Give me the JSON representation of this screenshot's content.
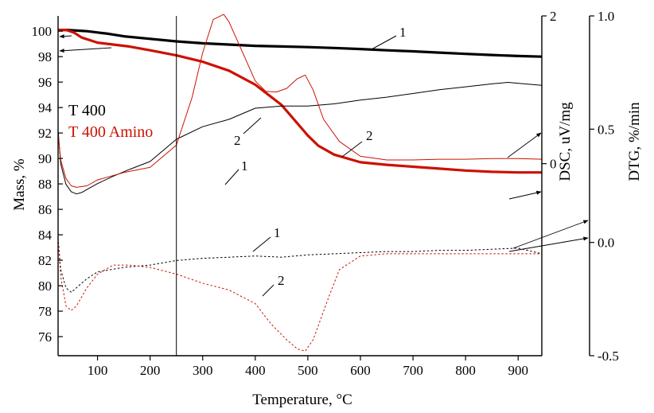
{
  "chart_data": {
    "type": "line",
    "title": "",
    "xlabel": "Temperature, °C",
    "ylabel": "Mass, %",
    "ylabel_dsc": "DSC, uV/mg",
    "ylabel_dtg": "DTG, %/min",
    "xlim": [
      25,
      945
    ],
    "ylim": [
      74.5,
      101.2
    ],
    "dsc_lim": [
      -2.6,
      2.0
    ],
    "dtg_lim": [
      -0.5,
      1.0
    ],
    "x_ticks": [
      100,
      200,
      300,
      400,
      500,
      600,
      700,
      800,
      900
    ],
    "y_ticks": [
      76,
      78,
      80,
      82,
      84,
      86,
      88,
      90,
      92,
      94,
      96,
      98,
      100
    ],
    "dsc_ticks": [
      0,
      2
    ],
    "dtg_ticks": [
      -0.5,
      0.0,
      0.5,
      1.0
    ],
    "dtg_tick_labels": [
      "-0.5",
      "0.0",
      "0.5",
      "1.0"
    ],
    "vertical_marker_x": 250,
    "legend": [
      {
        "label": "T 400",
        "color": "#000000"
      },
      {
        "label": "T 400 Amino",
        "color": "#cc1100"
      }
    ],
    "curve_labels": {
      "one": "1",
      "two": "2"
    },
    "series": [
      {
        "name": "T 400 mass (TG)",
        "axis": "mass",
        "color": "#000000",
        "style": "thick",
        "x": [
          25,
          40,
          60,
          80,
          100,
          120,
          150,
          200,
          250,
          300,
          350,
          400,
          450,
          500,
          550,
          600,
          650,
          700,
          750,
          800,
          850,
          900,
          945
        ],
        "values": [
          100.1,
          100.1,
          100.05,
          100.0,
          99.9,
          99.8,
          99.6,
          99.4,
          99.2,
          99.05,
          98.95,
          98.85,
          98.8,
          98.75,
          98.68,
          98.6,
          98.5,
          98.42,
          98.32,
          98.22,
          98.13,
          98.05,
          98.0
        ]
      },
      {
        "name": "T 400 Amino mass (TG)",
        "axis": "mass",
        "color": "#cc1100",
        "style": "thick",
        "x": [
          25,
          40,
          55,
          70,
          85,
          100,
          130,
          160,
          200,
          250,
          300,
          350,
          400,
          450,
          500,
          520,
          550,
          600,
          650,
          700,
          750,
          800,
          850,
          900,
          945
        ],
        "values": [
          100.1,
          100.1,
          99.9,
          99.5,
          99.3,
          99.1,
          98.95,
          98.8,
          98.5,
          98.1,
          97.6,
          96.9,
          95.8,
          94.2,
          91.8,
          91.0,
          90.3,
          89.7,
          89.5,
          89.35,
          89.2,
          89.05,
          88.95,
          88.9,
          88.9
        ]
      },
      {
        "name": "T 400 DSC",
        "axis": "dsc",
        "color": "#000000",
        "style": "thin",
        "x": [
          25,
          30,
          40,
          50,
          60,
          70,
          80,
          100,
          130,
          160,
          200,
          250,
          300,
          350,
          400,
          450,
          500,
          550,
          600,
          650,
          700,
          750,
          800,
          850,
          880,
          945
        ],
        "values": [
          0.45,
          0.0,
          -0.28,
          -0.38,
          -0.41,
          -0.39,
          -0.35,
          -0.27,
          -0.17,
          -0.08,
          0.03,
          0.33,
          0.5,
          0.6,
          0.75,
          0.78,
          0.78,
          0.81,
          0.86,
          0.9,
          0.95,
          1.0,
          1.04,
          1.08,
          1.1,
          1.06
        ]
      },
      {
        "name": "T 400 Amino DSC",
        "axis": "dsc",
        "color": "#cc1100",
        "style": "thin",
        "x": [
          25,
          30,
          40,
          50,
          60,
          80,
          100,
          150,
          200,
          250,
          280,
          300,
          320,
          340,
          350,
          370,
          400,
          420,
          440,
          460,
          480,
          495,
          510,
          530,
          560,
          600,
          650,
          680,
          700,
          750,
          800,
          850,
          900,
          945
        ],
        "values": [
          0.4,
          0.05,
          -0.2,
          -0.3,
          -0.32,
          -0.3,
          -0.22,
          -0.12,
          -0.05,
          0.25,
          0.9,
          1.5,
          1.95,
          2.02,
          1.92,
          1.6,
          1.12,
          0.98,
          0.97,
          1.02,
          1.15,
          1.2,
          1.0,
          0.6,
          0.3,
          0.1,
          0.05,
          0.05,
          0.05,
          0.06,
          0.06,
          0.07,
          0.07,
          0.06
        ]
      },
      {
        "name": "T 400 DTG",
        "axis": "dtg",
        "color": "#000000",
        "style": "dotted",
        "x": [
          25,
          30,
          40,
          50,
          60,
          80,
          100,
          150,
          200,
          250,
          300,
          350,
          400,
          450,
          500,
          550,
          600,
          650,
          700,
          750,
          800,
          850,
          900,
          945
        ],
        "values": [
          0.02,
          -0.12,
          -0.2,
          -0.22,
          -0.2,
          -0.16,
          -0.13,
          -0.11,
          -0.1,
          -0.08,
          -0.07,
          -0.065,
          -0.06,
          -0.065,
          -0.055,
          -0.05,
          -0.045,
          -0.04,
          -0.04,
          -0.035,
          -0.035,
          -0.03,
          -0.025,
          -0.05
        ]
      },
      {
        "name": "T 400 Amino DTG",
        "axis": "dtg",
        "color": "#cc1100",
        "style": "dotted",
        "x": [
          25,
          30,
          40,
          50,
          60,
          80,
          100,
          130,
          160,
          200,
          250,
          300,
          350,
          400,
          430,
          460,
          480,
          495,
          510,
          540,
          560,
          600,
          650,
          700,
          750,
          800,
          850,
          900,
          945
        ],
        "values": [
          0.02,
          -0.15,
          -0.28,
          -0.3,
          -0.28,
          -0.2,
          -0.14,
          -0.1,
          -0.1,
          -0.11,
          -0.14,
          -0.18,
          -0.21,
          -0.27,
          -0.36,
          -0.43,
          -0.47,
          -0.48,
          -0.43,
          -0.24,
          -0.12,
          -0.06,
          -0.05,
          -0.05,
          -0.05,
          -0.05,
          -0.05,
          -0.05,
          -0.05
        ]
      }
    ]
  }
}
